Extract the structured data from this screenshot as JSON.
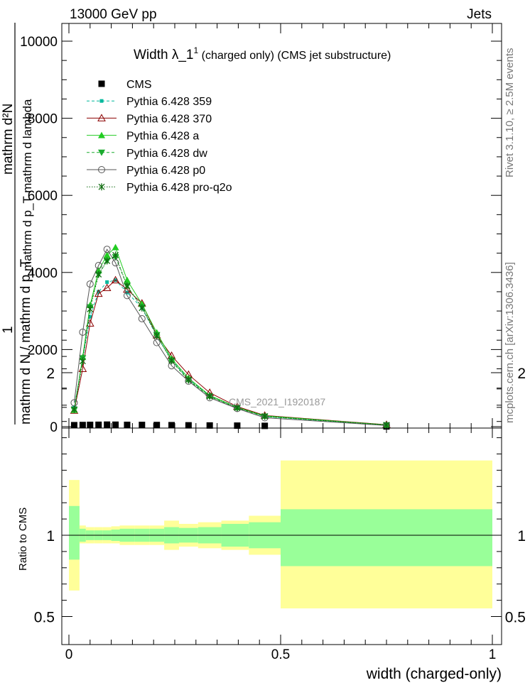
{
  "header": {
    "left": "13000 GeV pp",
    "right": "Jets",
    "side_top": "Rivet 3.1.10, ≥ 2.5M events",
    "side_bottom": "mcplots.cern.ch [arXiv:1306.3436]"
  },
  "chart_data": [
    {
      "type": "line",
      "title_main": "Width λ_1",
      "title_sup": "1",
      "title_rest": " (charged only) (CMS jet substructure)",
      "ylabel_top": "mathrm d²N",
      "ylabel_mid": "mathrm d p_T mathrm d lambda",
      "ylabel_one": "1",
      "ylabel_bottom": "mathrm d N / mathrm d p_T",
      "watermark": "CMS_2021_I1920187",
      "xlim": [
        0,
        1
      ],
      "ylim": [
        0,
        10500
      ],
      "y_ticks": [
        0,
        2000,
        4000,
        6000,
        8000,
        10000
      ],
      "y_tick_labels": [
        "0",
        "2000",
        "4000",
        "6000",
        "8000",
        "10000"
      ],
      "grid": false,
      "legend_position": "top-left",
      "x": [
        0.0125,
        0.0325,
        0.05,
        0.07,
        0.09,
        0.11,
        0.1375,
        0.1725,
        0.2075,
        0.2425,
        0.2825,
        0.3325,
        0.3975,
        0.4625,
        0.75
      ],
      "series": [
        {
          "name": "CMS",
          "color": "#000000",
          "marker": "square",
          "line": "none",
          "values": [
            38,
            42,
            46,
            48,
            52,
            50,
            46,
            44,
            42,
            38,
            34,
            30,
            26,
            20,
            6
          ]
        },
        {
          "name": "Pythia 6.428 359",
          "color": "#00b89c",
          "marker": "square-small",
          "line": "dashed",
          "values": [
            500,
            1750,
            2850,
            3500,
            3750,
            3800,
            3480,
            3080,
            2350,
            1730,
            1230,
            800,
            500,
            260,
            40
          ]
        },
        {
          "name": "Pythia 6.428 370",
          "color": "#8b0000",
          "marker": "triangle-open",
          "line": "solid",
          "values": [
            420,
            1500,
            2680,
            3450,
            3600,
            3800,
            3560,
            3200,
            2370,
            1840,
            1350,
            880,
            520,
            290,
            50
          ]
        },
        {
          "name": "Pythia 6.428 a",
          "color": "#22cc22",
          "marker": "triangle-filled",
          "line": "solid",
          "values": [
            430,
            1800,
            3150,
            4050,
            4450,
            4650,
            3800,
            3180,
            2440,
            1760,
            1260,
            810,
            500,
            280,
            45
          ]
        },
        {
          "name": "Pythia 6.428 dw",
          "color": "#1aab2e",
          "marker": "triangle-down",
          "line": "dashed",
          "values": [
            430,
            1780,
            3100,
            3950,
            4300,
            4400,
            3650,
            3100,
            2380,
            1700,
            1200,
            780,
            480,
            260,
            40
          ]
        },
        {
          "name": "Pythia 6.428 p0",
          "color": "#555555",
          "marker": "circle-open",
          "line": "solid",
          "values": [
            620,
            2450,
            3700,
            4180,
            4600,
            4250,
            3400,
            2800,
            2180,
            1580,
            1180,
            750,
            470,
            230,
            30
          ]
        },
        {
          "name": "Pythia 6.428 pro-q2o",
          "color": "#106d10",
          "marker": "star",
          "line": "dotted",
          "values": [
            450,
            1700,
            3050,
            3950,
            4300,
            4450,
            3650,
            3080,
            2360,
            1720,
            1220,
            790,
            490,
            270,
            42
          ]
        }
      ]
    },
    {
      "type": "area",
      "ylabel": "Ratio to CMS",
      "xlabel": "width (charged-only)",
      "xlim": [
        0,
        1
      ],
      "ylim": [
        0.4,
        2.3
      ],
      "x_ticks": [
        0,
        0.5,
        1
      ],
      "x_tick_labels": [
        "0",
        "0.5",
        "1"
      ],
      "y_ticks": [
        0.5,
        1,
        2
      ],
      "y_tick_labels": [
        "0.5",
        "1",
        "2"
      ],
      "bin_edges": [
        0.0,
        0.025,
        0.04,
        0.06,
        0.08,
        0.1,
        0.12,
        0.155,
        0.19,
        0.225,
        0.26,
        0.305,
        0.36,
        0.425,
        0.5,
        1.0
      ],
      "band_inner": [
        [
          0.85,
          1.18
        ],
        [
          0.96,
          1.04
        ],
        [
          0.97,
          1.03
        ],
        [
          0.97,
          1.03
        ],
        [
          0.97,
          1.03
        ],
        [
          0.965,
          1.035
        ],
        [
          0.96,
          1.04
        ],
        [
          0.96,
          1.04
        ],
        [
          0.96,
          1.04
        ],
        [
          0.95,
          1.05
        ],
        [
          0.955,
          1.045
        ],
        [
          0.95,
          1.05
        ],
        [
          0.93,
          1.07
        ],
        [
          0.92,
          1.08
        ],
        [
          0.81,
          1.16
        ]
      ],
      "band_outer": [
        [
          0.66,
          1.34
        ],
        [
          0.95,
          1.06
        ],
        [
          0.95,
          1.05
        ],
        [
          0.95,
          1.05
        ],
        [
          0.95,
          1.05
        ],
        [
          0.95,
          1.055
        ],
        [
          0.94,
          1.06
        ],
        [
          0.94,
          1.06
        ],
        [
          0.94,
          1.06
        ],
        [
          0.91,
          1.09
        ],
        [
          0.93,
          1.07
        ],
        [
          0.92,
          1.08
        ],
        [
          0.91,
          1.09
        ],
        [
          0.88,
          1.12
        ],
        [
          0.55,
          1.46
        ]
      ],
      "inner_color": "#99ff99",
      "outer_color": "#ffff99",
      "reference": 1
    }
  ]
}
